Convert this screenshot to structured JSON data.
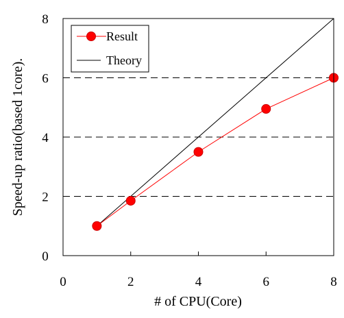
{
  "chart_data": {
    "type": "line",
    "xlabel": "# of CPU(Core)",
    "ylabel": "Speed-up ratio(based 1core).",
    "xlim": [
      0,
      8
    ],
    "ylim": [
      0,
      8
    ],
    "x_ticks": [
      "0",
      "2",
      "4",
      "6",
      "8"
    ],
    "y_ticks": [
      "0",
      "2",
      "4",
      "6",
      "8"
    ],
    "grid": "dashed horizontal at y=2, 4, 6",
    "legend": "top-left",
    "series": [
      {
        "name": "Result",
        "color": "#ff0000",
        "marker": "circle",
        "x": [
          1,
          2,
          4,
          6,
          8
        ],
        "y": [
          1.0,
          1.85,
          3.5,
          4.95,
          6.0
        ]
      },
      {
        "name": "Theory",
        "color": "#000000",
        "marker": "none",
        "x": [
          1,
          8
        ],
        "y": [
          1,
          8
        ]
      }
    ]
  }
}
